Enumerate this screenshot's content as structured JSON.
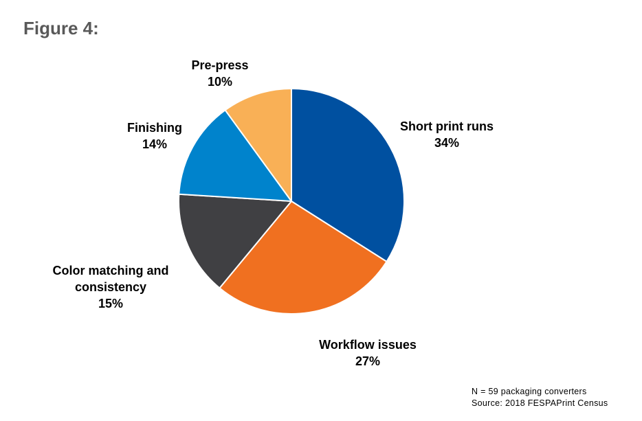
{
  "figure_title": "Figure 4:",
  "chart_data": {
    "type": "pie",
    "title": "",
    "slices": [
      {
        "label_lines": [
          "Short print runs"
        ],
        "value": 34,
        "value_text": "34%",
        "color": "#0050A0"
      },
      {
        "label_lines": [
          "Workflow issues"
        ],
        "value": 27,
        "value_text": "27%",
        "color": "#F07020"
      },
      {
        "label_lines": [
          "Color matching and",
          "consistency"
        ],
        "value": 15,
        "value_text": "15%",
        "color": "#404043"
      },
      {
        "label_lines": [
          "Finishing"
        ],
        "value": 14,
        "value_text": "14%",
        "color": "#0083CC"
      },
      {
        "label_lines": [
          "Pre-press"
        ],
        "value": 10,
        "value_text": "10%",
        "color": "#F9B056"
      }
    ],
    "start_angle": "12 o'clock",
    "direction": "clockwise",
    "legend": "none (labels placed around the pie)"
  },
  "footnote": {
    "line1": "N = 59 packaging converters",
    "line2": "Source: 2018 FESPAPrint Census"
  }
}
